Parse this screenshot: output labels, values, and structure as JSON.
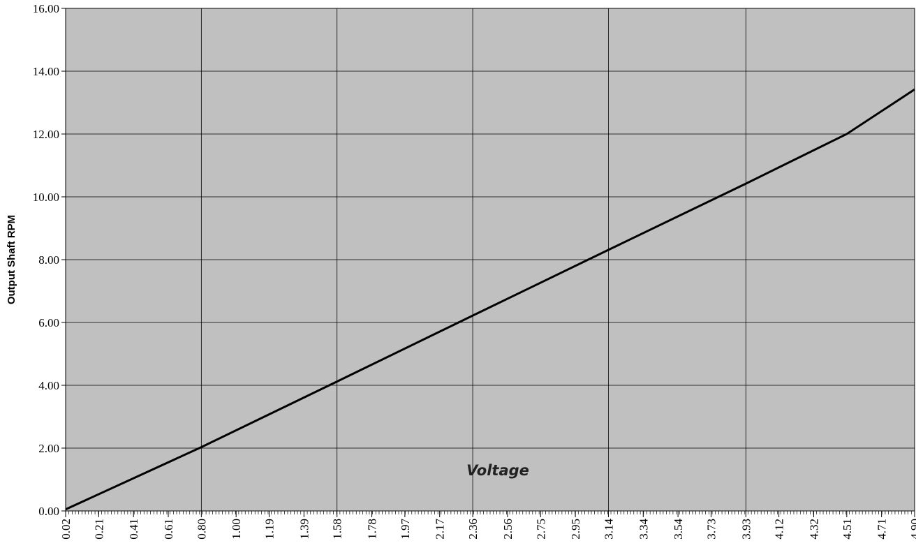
{
  "chart_data": {
    "type": "line",
    "title": "",
    "xlabel": "Voltage",
    "ylabel": "Output Shaft RPM",
    "ylim": [
      0,
      16
    ],
    "xlim": [
      0.02,
      4.9
    ],
    "y_ticks": [
      "0.00",
      "2.00",
      "4.00",
      "6.00",
      "8.00",
      "10.00",
      "12.00",
      "14.00",
      "16.00"
    ],
    "x_tick_labels": [
      "0.02",
      "0.21",
      "0.41",
      "0.61",
      "0.80",
      "1.00",
      "1.19",
      "1.39",
      "1.58",
      "1.78",
      "1.97",
      "2.17",
      "2.36",
      "2.56",
      "2.75",
      "2.95",
      "3.14",
      "3.34",
      "3.54",
      "3.73",
      "3.93",
      "4.12",
      "4.32",
      "4.51",
      "4.71",
      "4.90"
    ],
    "major_x_gridlines_at": [
      0.8,
      1.58,
      2.36,
      3.14,
      3.93
    ],
    "grid": true,
    "plot_background": "#c0c0c0",
    "line_color": "#000000",
    "series": [
      {
        "x": [
          0.02,
          0.8,
          1.58,
          2.36,
          3.14,
          3.93,
          4.51,
          4.9
        ],
        "values": [
          0.05,
          2.03,
          4.12,
          6.22,
          8.31,
          10.42,
          12.0,
          13.42
        ]
      }
    ]
  }
}
